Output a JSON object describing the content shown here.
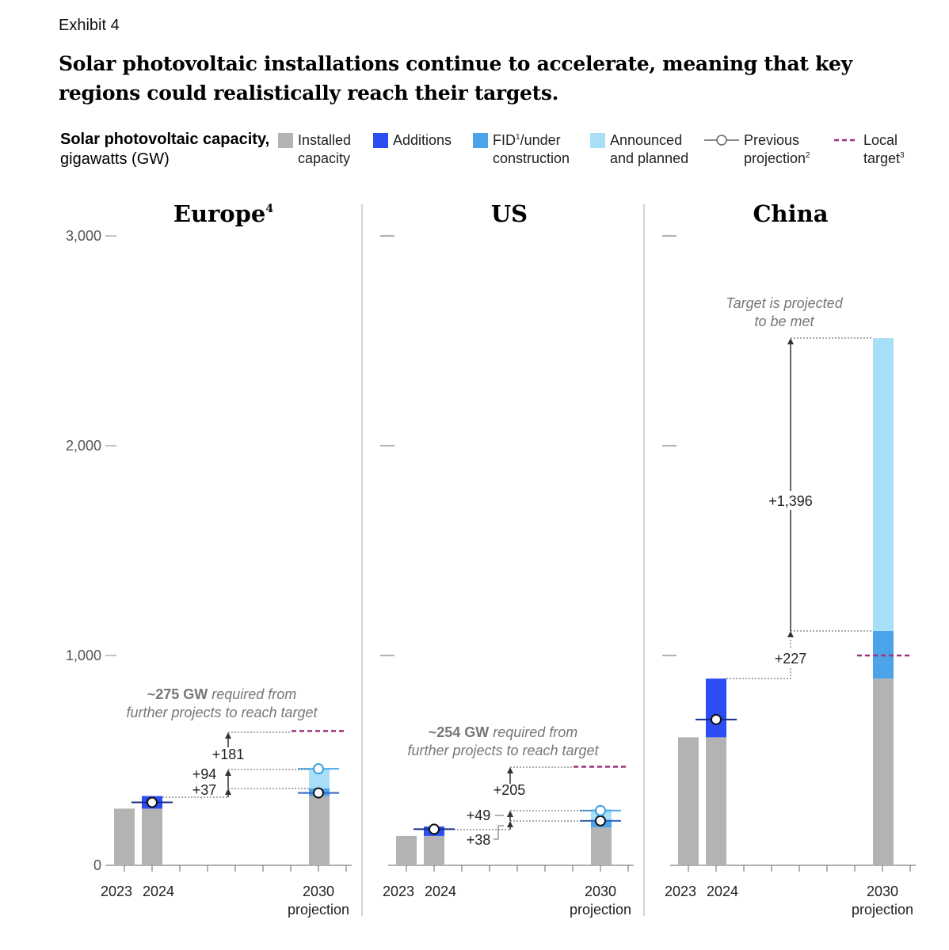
{
  "header": {
    "exhibit": "Exhibit 4",
    "title": "Solar photovoltaic installations continue to accelerate, meaning that key regions could realistically reach their targets."
  },
  "ylabel": {
    "bold": "Solar photovoltaic capacity,",
    "rest": " gigawatts (GW)"
  },
  "legend": {
    "installed": {
      "line1": "Installed",
      "line2": "capacity",
      "color": "#b3b3b3"
    },
    "additions": {
      "line1": "Additions",
      "color": "#2b4df2"
    },
    "fid": {
      "line1_a": "FID",
      "line1_sup": "1",
      "line1_b": "/under",
      "line2": "construction",
      "color": "#4da3e8"
    },
    "announced": {
      "line1": "Announced",
      "line2": "and planned",
      "color": "#a9def8"
    },
    "previous": {
      "line1": "Previous",
      "line2_a": "projection",
      "line2_sup": "2"
    },
    "target": {
      "line1": "Local",
      "line2_a": "target",
      "line2_sup": "3",
      "color": "#a0317f"
    }
  },
  "annotations": {
    "europe": {
      "bold": "~275 GW",
      "rest": " required from",
      "line2": "further projects to reach target"
    },
    "us": {
      "bold": "~254 GW",
      "rest": " required from",
      "line2": "further projects to reach target"
    },
    "china": {
      "line1": "Target is projected",
      "line2": "to be met"
    }
  },
  "chart_data": {
    "type": "bar",
    "ylabel": "Solar photovoltaic capacity, gigawatts (GW)",
    "ylim": [
      0,
      3000
    ],
    "yticks": [
      0,
      1000,
      2000,
      3000
    ],
    "ytick_labels": [
      "0",
      "1,000",
      "2,000",
      "3,000"
    ],
    "x_labels": [
      "2023",
      "2024",
      "2030",
      "projection"
    ],
    "panels": [
      {
        "name": "Europe",
        "name_sup": "4",
        "installed_2023": 270,
        "installed_2024": 270,
        "additions_2024": 60,
        "installed_2030": 330,
        "fid_2030": 37,
        "announced_2030": 94,
        "previous_2024": 300,
        "previous_2030_low": 345,
        "previous_2030_high": 460,
        "local_target": 640,
        "steps": [
          "+37",
          "+94",
          "+181"
        ]
      },
      {
        "name": "US",
        "name_sup": "",
        "installed_2023": 140,
        "installed_2024": 140,
        "additions_2024": 45,
        "installed_2030": 180,
        "fid_2030": 38,
        "announced_2030": 49,
        "previous_2024": 172,
        "previous_2030_low": 212,
        "previous_2030_high": 261,
        "local_target": 470,
        "steps": [
          "+38",
          "+49",
          "+205"
        ]
      },
      {
        "name": "China",
        "name_sup": "",
        "installed_2023": 610,
        "installed_2024": 610,
        "additions_2024": 280,
        "installed_2030": 890,
        "fid_2030": 227,
        "announced_2030": 1396,
        "previous_2024": 695,
        "local_target": 1000,
        "steps": [
          "+227",
          "+1,396"
        ]
      }
    ]
  }
}
